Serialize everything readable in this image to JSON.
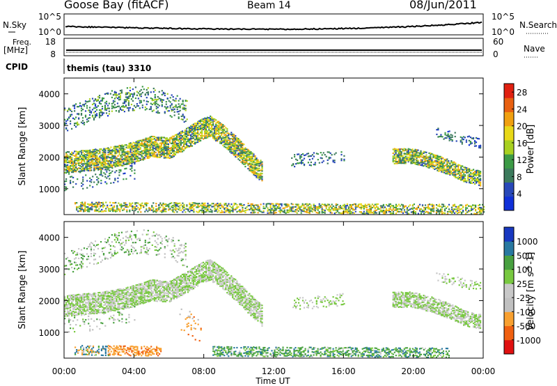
{
  "header": {
    "station": "Goose Bay (fitACF)",
    "beam": "Beam 14",
    "date": "08/Jun/2011"
  },
  "params": {
    "nsky_label": "N.Sky",
    "nsky_ticks": [
      "10^5",
      "10^0"
    ],
    "nsearch_label": "N.Search",
    "nsearch_ticks": [
      "10^5",
      "10^0"
    ],
    "freq_label": "Freq.",
    "freq_unit": "[MHz]",
    "freq_ticks": [
      "18",
      "8"
    ],
    "nave_label": "Nave",
    "nave_ticks": [
      "60",
      "0"
    ],
    "cpid_label": "CPID",
    "cpid_text": "themis (tau) 3310"
  },
  "colors": {
    "power": [
      "#1030d8",
      "#2848b8",
      "#3c7a5c",
      "#3c9a46",
      "#a8d020",
      "#e8d818",
      "#f0a010",
      "#e86010",
      "#e02010"
    ],
    "velocity": [
      "#e01010",
      "#f06010",
      "#f8a030",
      "#c0c0c0",
      "#c8c8c8",
      "#78c840",
      "#48a040",
      "#2878a0",
      "#1838c0"
    ],
    "ground_scatter": "#c0c0c0"
  },
  "chart_data": [
    {
      "type": "heatmap",
      "name": "power",
      "xlabel": "",
      "ylabel": "Slant Range [km]",
      "ylim": [
        180,
        4500
      ],
      "yticks": [
        "1000",
        "2000",
        "3000",
        "4000"
      ],
      "colorbar_label": "Power [dB]",
      "colorbar_ticks": [
        "4",
        "8",
        "12",
        "16",
        "20",
        "24",
        "28"
      ],
      "colorbar_range": [
        0,
        30
      ],
      "scatter_bands": [
        {
          "points": [
            [
              0.0,
              1850
            ],
            [
              2.0,
              1950
            ],
            [
              3.5,
              2100
            ],
            [
              5.0,
              2350
            ],
            [
              6.0,
              2300
            ],
            [
              7.0,
              2600
            ],
            [
              7.7,
              2850
            ],
            [
              8.3,
              3000
            ],
            [
              9.0,
              2750
            ],
            [
              10.0,
              2250
            ],
            [
              10.6,
              1900
            ],
            [
              11.3,
              1550
            ]
          ],
          "width": 320,
          "density": 0.8,
          "mean": 14,
          "spread": 9
        },
        {
          "points": [
            [
              0.0,
              3200
            ],
            [
              1.5,
              3500
            ],
            [
              3.0,
              3800
            ],
            [
              4.5,
              3900
            ],
            [
              6.0,
              3700
            ],
            [
              7.0,
              3450
            ]
          ],
          "width": 350,
          "density": 0.28,
          "mean": 9,
          "spread": 6
        },
        {
          "points": [
            [
              0.0,
              1200
            ],
            [
              1.5,
              1350
            ],
            [
              2.8,
              1500
            ],
            [
              4.0,
              1600
            ]
          ],
          "width": 250,
          "density": 0.15,
          "mean": 8,
          "spread": 5
        },
        {
          "points": [
            [
              13.0,
              1900
            ],
            [
              15.0,
              2000
            ],
            [
              16.0,
              2050
            ]
          ],
          "width": 180,
          "density": 0.2,
          "mean": 8,
          "spread": 4
        },
        {
          "points": [
            [
              18.8,
              2050
            ],
            [
              20.0,
              2050
            ],
            [
              21.0,
              1900
            ],
            [
              22.0,
              1700
            ],
            [
              23.0,
              1450
            ],
            [
              23.8,
              1350
            ]
          ],
          "width": 220,
          "density": 0.8,
          "mean": 14,
          "spread": 9
        },
        {
          "points": [
            [
              21.3,
              2800
            ],
            [
              22.3,
              2650
            ],
            [
              23.8,
              2450
            ]
          ],
          "width": 150,
          "density": 0.3,
          "mean": 7,
          "spread": 4
        },
        {
          "points": [
            [
              0.6,
              450
            ],
            [
              6.0,
              430
            ],
            [
              12.0,
              400
            ],
            [
              17.0,
              390
            ],
            [
              24.0,
              370
            ]
          ],
          "width": 150,
          "density": 0.55,
          "mean": 14,
          "spread": 9
        }
      ]
    },
    {
      "type": "heatmap",
      "name": "velocity",
      "xlabel": "Time UT",
      "ylabel": "Slant Range [km]",
      "ylim": [
        180,
        4500
      ],
      "yticks": [
        "1000",
        "2000",
        "3000",
        "4000"
      ],
      "xticks": [
        "00:00",
        "04:00",
        "08:00",
        "12:00",
        "16:00",
        "20:00",
        "00:00"
      ],
      "xlim": [
        0,
        24
      ],
      "colorbar_label": "Velocity [m s^-1]",
      "colorbar_ticks": [
        "-1000",
        "-500",
        "-100",
        "-25",
        "25",
        "100",
        "500",
        "1000"
      ],
      "colorbar_range": [
        -1250,
        1250
      ],
      "scatter_bands": [
        {
          "points": [
            [
              0.0,
              1850
            ],
            [
              2.0,
              1950
            ],
            [
              3.5,
              2100
            ],
            [
              5.0,
              2350
            ],
            [
              6.0,
              2300
            ],
            [
              7.0,
              2600
            ],
            [
              7.7,
              2850
            ],
            [
              8.3,
              3000
            ],
            [
              9.0,
              2750
            ],
            [
              10.0,
              2250
            ],
            [
              10.6,
              1900
            ],
            [
              11.3,
              1550
            ]
          ],
          "width": 320,
          "density": 0.8,
          "mean": 0,
          "spread": 20
        },
        {
          "points": [
            [
              0.0,
              3200
            ],
            [
              1.5,
              3500
            ],
            [
              3.0,
              3800
            ],
            [
              4.5,
              3900
            ],
            [
              6.0,
              3700
            ],
            [
              7.0,
              3450
            ]
          ],
          "width": 350,
          "density": 0.2,
          "mean": 0,
          "spread": 60
        },
        {
          "points": [
            [
              0.0,
              1200
            ],
            [
              1.5,
              1350
            ],
            [
              2.8,
              1500
            ],
            [
              4.0,
              1600
            ]
          ],
          "width": 250,
          "density": 0.12,
          "mean": 0,
          "spread": 80
        },
        {
          "points": [
            [
              13.0,
              1900
            ],
            [
              15.0,
              2000
            ],
            [
              16.0,
              2050
            ]
          ],
          "width": 180,
          "density": 0.2,
          "mean": 0,
          "spread": 20
        },
        {
          "points": [
            [
              18.8,
              2050
            ],
            [
              20.0,
              2050
            ],
            [
              21.0,
              1900
            ],
            [
              22.0,
              1700
            ],
            [
              23.0,
              1450
            ],
            [
              23.8,
              1350
            ]
          ],
          "width": 220,
          "density": 0.75,
          "mean": 0,
          "spread": 20
        },
        {
          "points": [
            [
              21.3,
              2800
            ],
            [
              22.3,
              2650
            ],
            [
              23.8,
              2450
            ]
          ],
          "width": 150,
          "density": 0.3,
          "mean": 0,
          "spread": 20
        },
        {
          "points": [
            [
              6.6,
              1350
            ],
            [
              7.2,
              1250
            ],
            [
              7.8,
              1100
            ]
          ],
          "width": 400,
          "density": 0.1,
          "mean": -300,
          "spread": 250
        },
        {
          "points": [
            [
              2.5,
              450
            ],
            [
              4.0,
              430
            ],
            [
              5.5,
              420
            ]
          ],
          "width": 150,
          "density": 0.5,
          "mean": -400,
          "spread": 300
        },
        {
          "points": [
            [
              8.5,
              420
            ],
            [
              12.0,
              400
            ],
            [
              17.0,
              390
            ],
            [
              22.0,
              370
            ]
          ],
          "width": 150,
          "density": 0.5,
          "mean": 60,
          "spread": 70
        },
        {
          "points": [
            [
              0.6,
              450
            ],
            [
              2.5,
              440
            ]
          ],
          "width": 150,
          "density": 0.35,
          "mean": 100,
          "spread": 400
        }
      ]
    }
  ]
}
